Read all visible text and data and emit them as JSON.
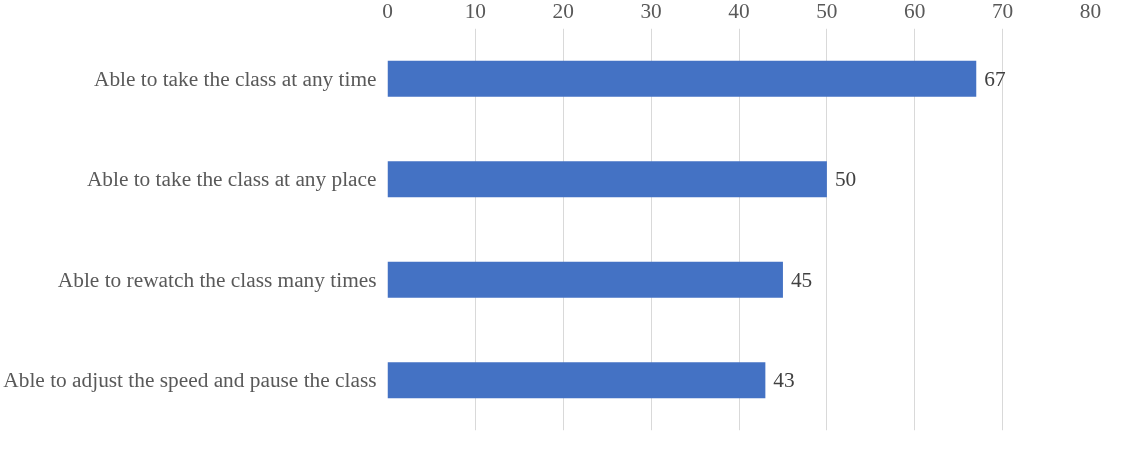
{
  "chart_data": {
    "type": "bar",
    "orientation": "horizontal",
    "categories": [
      "Able to take the class at any time",
      "Able to take the class at any place",
      "Able to rewatch the class many times",
      "Able to adjust the speed and pause the class"
    ],
    "values": [
      67,
      50,
      45,
      43
    ],
    "color": "#4472c4",
    "xlim": [
      0,
      80
    ],
    "xticks": [
      0,
      10,
      20,
      30,
      40,
      50,
      60,
      70,
      80
    ],
    "grid": "x",
    "data_labels": true
  }
}
